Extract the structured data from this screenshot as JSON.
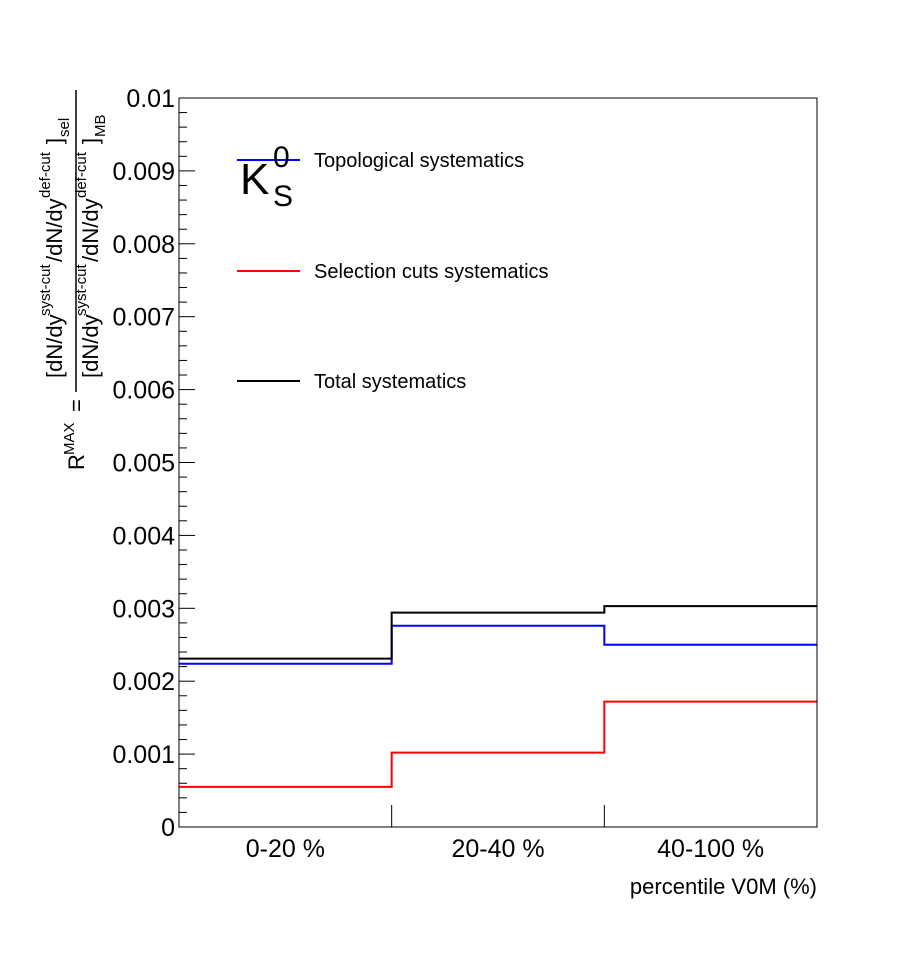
{
  "chart_data": {
    "type": "line",
    "step": true,
    "categories": [
      "0-20 %",
      "20-40 %",
      "40-100 %"
    ],
    "xlabel": "percentile V0M (%)",
    "ylabel": {
      "lhs_base": "R",
      "lhs_sup": "MAX",
      "equals": "=",
      "num_open": "[dN/dy",
      "num_sup1": "syst-cut",
      "num_mid": "/dN/dy",
      "num_sup2": "def-cut",
      "num_close": "]",
      "num_sub": "sel",
      "den_open": "[dN/dy",
      "den_sup1": "syst-cut",
      "den_mid": "/dN/dy",
      "den_sup2": "def-cut",
      "den_close": "]",
      "den_sub": "MB"
    },
    "ylim": [
      0,
      0.01
    ],
    "yticks": [
      "0",
      "0.001",
      "0.002",
      "0.003",
      "0.004",
      "0.005",
      "0.006",
      "0.007",
      "0.008",
      "0.009",
      "0.01"
    ],
    "ytick_values": [
      0,
      0.001,
      0.002,
      0.003,
      0.004,
      0.005,
      0.006,
      0.007,
      0.008,
      0.009,
      0.01
    ],
    "particle": {
      "base": "K",
      "sup": "0",
      "sub": "S"
    },
    "grid": false,
    "legend_position": "top-left",
    "series": [
      {
        "name": "Topological systematics",
        "color": "#0000ff",
        "values": [
          0.00224,
          0.00276,
          0.0025
        ]
      },
      {
        "name": "Selection cuts systematics",
        "color": "#ff0000",
        "values": [
          0.00055,
          0.00102,
          0.00172
        ]
      },
      {
        "name": "Total systematics",
        "color": "#000000",
        "values": [
          0.00231,
          0.00294,
          0.00303
        ]
      }
    ]
  }
}
